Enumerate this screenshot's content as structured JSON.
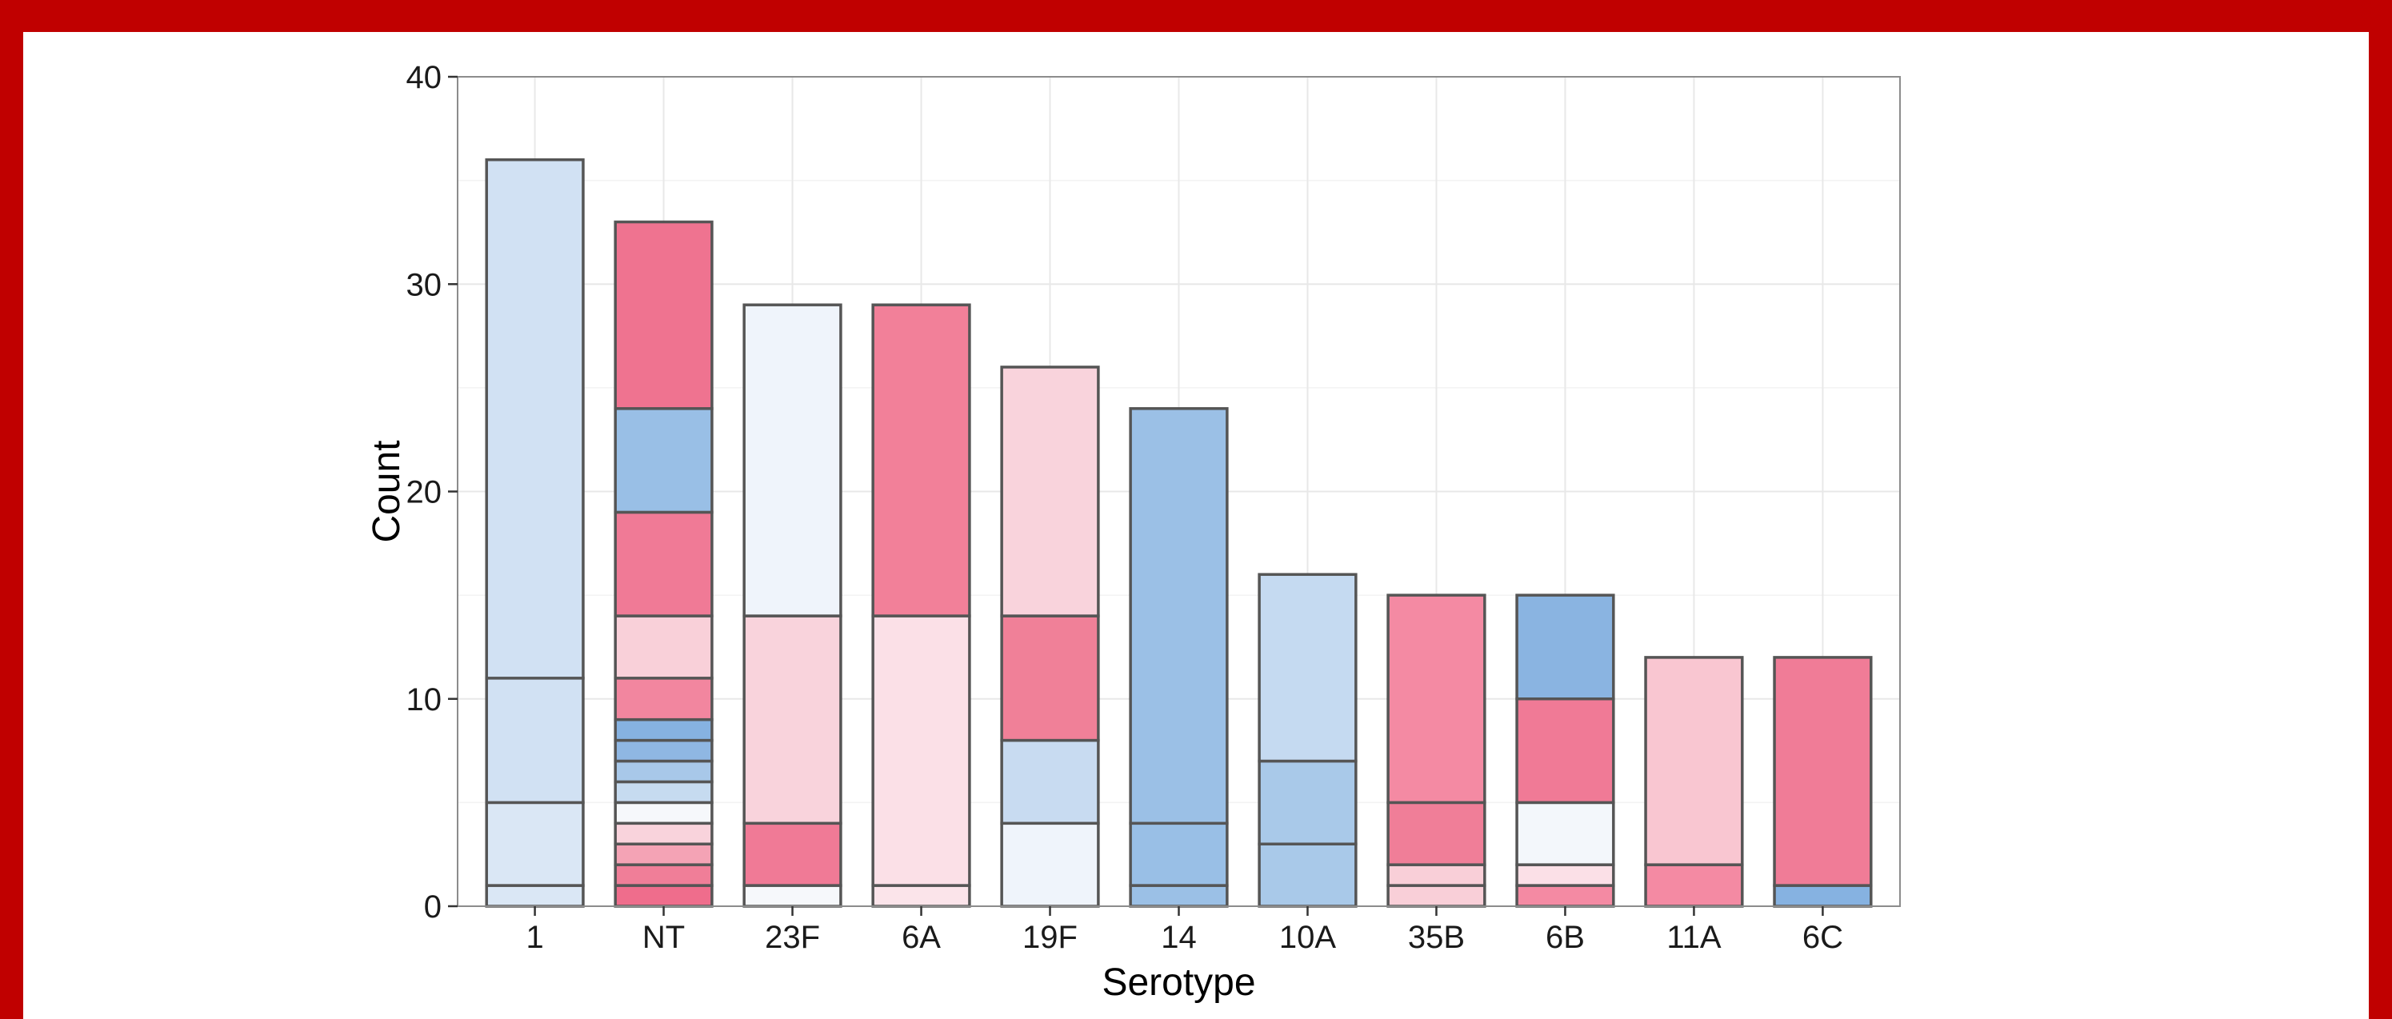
{
  "chart_data": {
    "type": "bar",
    "stacked": true,
    "xlabel": "Serotype",
    "ylabel": "Count",
    "ylim": [
      0,
      40
    ],
    "yticks": [
      0,
      10,
      20,
      30,
      40
    ],
    "grid": true,
    "categories": [
      "1",
      "NT",
      "23F",
      "6A",
      "19F",
      "14",
      "10A",
      "35B",
      "6B",
      "11A",
      "6C"
    ],
    "stacks": [
      {
        "category": "1",
        "segments": [
          {
            "value": 1,
            "color": "#dae7f5"
          },
          {
            "value": 4,
            "color": "#dae7f5"
          },
          {
            "value": 6,
            "color": "#d1e1f3"
          },
          {
            "value": 25,
            "color": "#d1e1f3"
          }
        ]
      },
      {
        "category": "NT",
        "segments": [
          {
            "value": 1,
            "color": "#ef6d8c"
          },
          {
            "value": 1,
            "color": "#f07e98"
          },
          {
            "value": 1,
            "color": "#f4a3b5"
          },
          {
            "value": 1,
            "color": "#f9d3dc"
          },
          {
            "value": 1,
            "color": "#f6f8fb"
          },
          {
            "value": 1,
            "color": "#c6dbf0"
          },
          {
            "value": 1,
            "color": "#a8c8e9"
          },
          {
            "value": 1,
            "color": "#8fb7e3"
          },
          {
            "value": 1,
            "color": "#86b2e1"
          },
          {
            "value": 2,
            "color": "#f2869f"
          },
          {
            "value": 3,
            "color": "#f9d0d9"
          },
          {
            "value": 5,
            "color": "#f07a96"
          },
          {
            "value": 5,
            "color": "#99bfe6"
          },
          {
            "value": 9,
            "color": "#ef7390"
          }
        ]
      },
      {
        "category": "23F",
        "segments": [
          {
            "value": 1,
            "color": "#f6f8fb"
          },
          {
            "value": 3,
            "color": "#f07a96"
          },
          {
            "value": 10,
            "color": "#f9d3dc"
          },
          {
            "value": 15,
            "color": "#eff4fb"
          }
        ]
      },
      {
        "category": "6A",
        "segments": [
          {
            "value": 1,
            "color": "#fbe4ea"
          },
          {
            "value": 13,
            "color": "#fbe0e7"
          },
          {
            "value": 15,
            "color": "#f28099"
          }
        ]
      },
      {
        "category": "19F",
        "segments": [
          {
            "value": 4,
            "color": "#eff4fb"
          },
          {
            "value": 4,
            "color": "#c8dbf1"
          },
          {
            "value": 6,
            "color": "#f08098"
          },
          {
            "value": 12,
            "color": "#f9d3dc"
          }
        ]
      },
      {
        "category": "14",
        "segments": [
          {
            "value": 1,
            "color": "#9bc0e6"
          },
          {
            "value": 3,
            "color": "#99bfe6"
          },
          {
            "value": 20,
            "color": "#9bc0e6"
          }
        ]
      },
      {
        "category": "10A",
        "segments": [
          {
            "value": 3,
            "color": "#a9c9e9"
          },
          {
            "value": 4,
            "color": "#a9c9e9"
          },
          {
            "value": 9,
            "color": "#c5daf1"
          }
        ]
      },
      {
        "category": "35B",
        "segments": [
          {
            "value": 1,
            "color": "#f9cfd8"
          },
          {
            "value": 1,
            "color": "#f9cfd8"
          },
          {
            "value": 3,
            "color": "#f07e98"
          },
          {
            "value": 10,
            "color": "#f48aa3"
          }
        ]
      },
      {
        "category": "6B",
        "segments": [
          {
            "value": 1,
            "color": "#f48aa3"
          },
          {
            "value": 1,
            "color": "#fbe0e7"
          },
          {
            "value": 3,
            "color": "#f3f7fb"
          },
          {
            "value": 5,
            "color": "#f07a96"
          },
          {
            "value": 5,
            "color": "#8ab4e1"
          }
        ]
      },
      {
        "category": "11A",
        "segments": [
          {
            "value": 2,
            "color": "#f48aa3"
          },
          {
            "value": 10,
            "color": "#f9c6d1"
          }
        ]
      },
      {
        "category": "6C",
        "segments": [
          {
            "value": 1,
            "color": "#86b2e1"
          },
          {
            "value": 11,
            "color": "#f07c97"
          }
        ]
      }
    ],
    "colors": {
      "background": "#ffffff",
      "outer_frame": "#c00000",
      "bar_outline": "#555555",
      "grid_major": "#e8e8e8",
      "grid_minor": "#f3f3f3",
      "panel_border": "#8c8c8c"
    }
  }
}
